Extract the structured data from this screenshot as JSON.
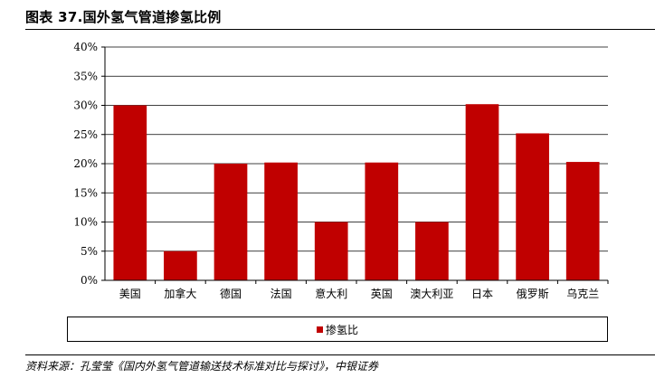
{
  "header": {
    "title": "图表 37.国外氢气管道掺氢比例"
  },
  "footer": {
    "source": "资料来源：孔莹莹《国内外氢气管道输送技术标准对比与探讨》，中银证券"
  },
  "colors": {
    "bar": "#c00000",
    "grid": "#000000"
  },
  "chart_data": {
    "type": "bar",
    "title": "",
    "xlabel": "",
    "ylabel": "",
    "ylim": [
      0,
      40
    ],
    "yticks": [
      "0%",
      "5%",
      "10%",
      "15%",
      "20%",
      "25%",
      "30%",
      "35%",
      "40%"
    ],
    "grid": true,
    "legend_position": "bottom",
    "categories": [
      "美国",
      "加拿大",
      "德国",
      "法国",
      "意大利",
      "英国",
      "澳大利亚",
      "日本",
      "俄罗斯",
      "乌克兰"
    ],
    "series": [
      {
        "name": "掺氢比",
        "values": [
          30,
          5,
          20,
          20.2,
          10,
          20.2,
          10,
          30.2,
          25.2,
          20.3
        ]
      }
    ]
  }
}
